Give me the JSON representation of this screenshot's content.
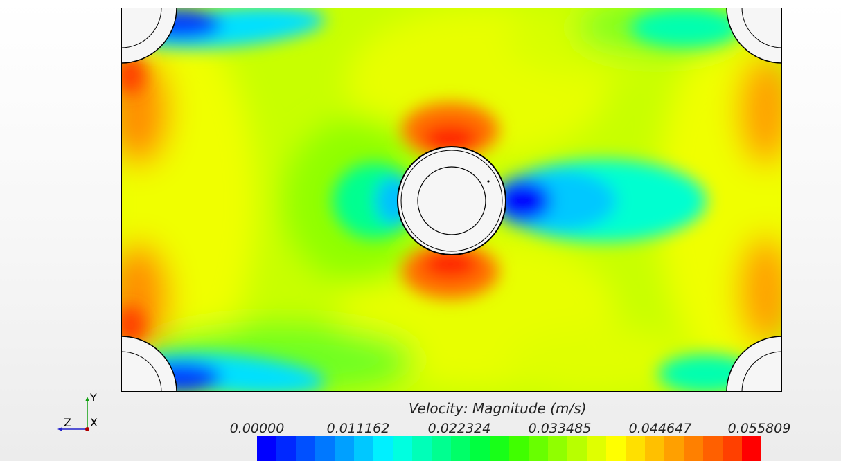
{
  "scalar_bar": {
    "title": "Velocity: Magnitude (m/s)",
    "ticks": [
      "0.00000",
      "0.011162",
      "0.022324",
      "0.033485",
      "0.044647",
      "0.055809"
    ],
    "range": [
      0.0,
      0.055809
    ],
    "colors": [
      "#0000ff",
      "#0028ff",
      "#0050ff",
      "#0078ff",
      "#00a0ff",
      "#00c8ff",
      "#00f0ff",
      "#00ffe0",
      "#00ffb8",
      "#00ff90",
      "#00ff68",
      "#00ff40",
      "#18ff18",
      "#40ff00",
      "#68ff00",
      "#90ff00",
      "#b8ff00",
      "#e0ff00",
      "#ffff00",
      "#ffe000",
      "#ffc000",
      "#ffa000",
      "#ff8000",
      "#ff6000",
      "#ff4000",
      "#ff0000"
    ]
  },
  "axes_triad": {
    "y": "Y",
    "z": "Z",
    "x": "X"
  }
}
